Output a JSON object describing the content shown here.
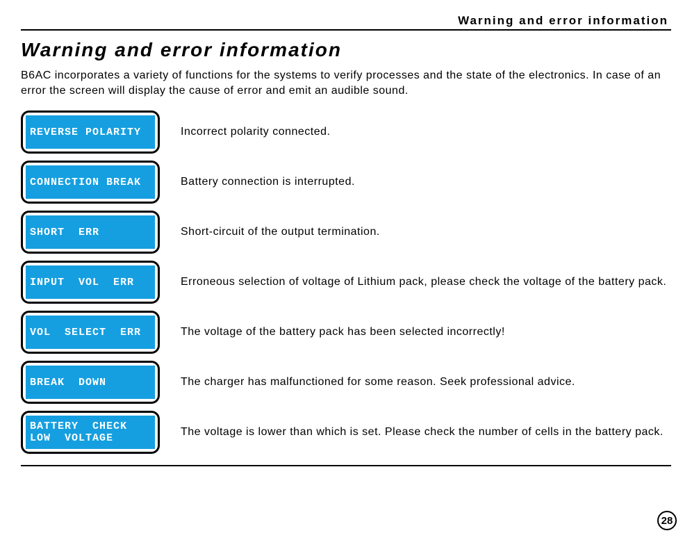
{
  "header_label": "Warning and error information",
  "main_title": "Warning and error information",
  "intro_text": "B6AC incorporates a variety of functions for the systems to verify processes and the state of the electronics. In case of an error the screen will display the cause of error and emit an audible sound.",
  "lcd_bg_color": "#159fe0",
  "lcd_text_color": "#ffffff",
  "box_border_color": "#000000",
  "errors": [
    {
      "lcd_lines": [
        "REVERSE POLARITY"
      ],
      "description": "Incorrect polarity connected."
    },
    {
      "lcd_lines": [
        "CONNECTION BREAK"
      ],
      "description": "Battery connection is interrupted."
    },
    {
      "lcd_lines": [
        "SHORT  ERR"
      ],
      "description": "Short-circuit of the output termination."
    },
    {
      "lcd_lines": [
        "INPUT  VOL  ERR"
      ],
      "description": "Erroneous selection of voltage of Lithium pack, please check the voltage of the battery pack."
    },
    {
      "lcd_lines": [
        "VOL  SELECT  ERR"
      ],
      "description": "The voltage of the battery pack has been selected incorrectly!"
    },
    {
      "lcd_lines": [
        "BREAK  DOWN"
      ],
      "description": "The charger has malfunctioned for some reason. Seek professional advice."
    },
    {
      "lcd_lines": [
        "BATTERY  CHECK",
        "LOW  VOLTAGE"
      ],
      "description": "The voltage is lower than which is set. Please check the number of cells in the battery pack."
    }
  ],
  "page_number": "28"
}
